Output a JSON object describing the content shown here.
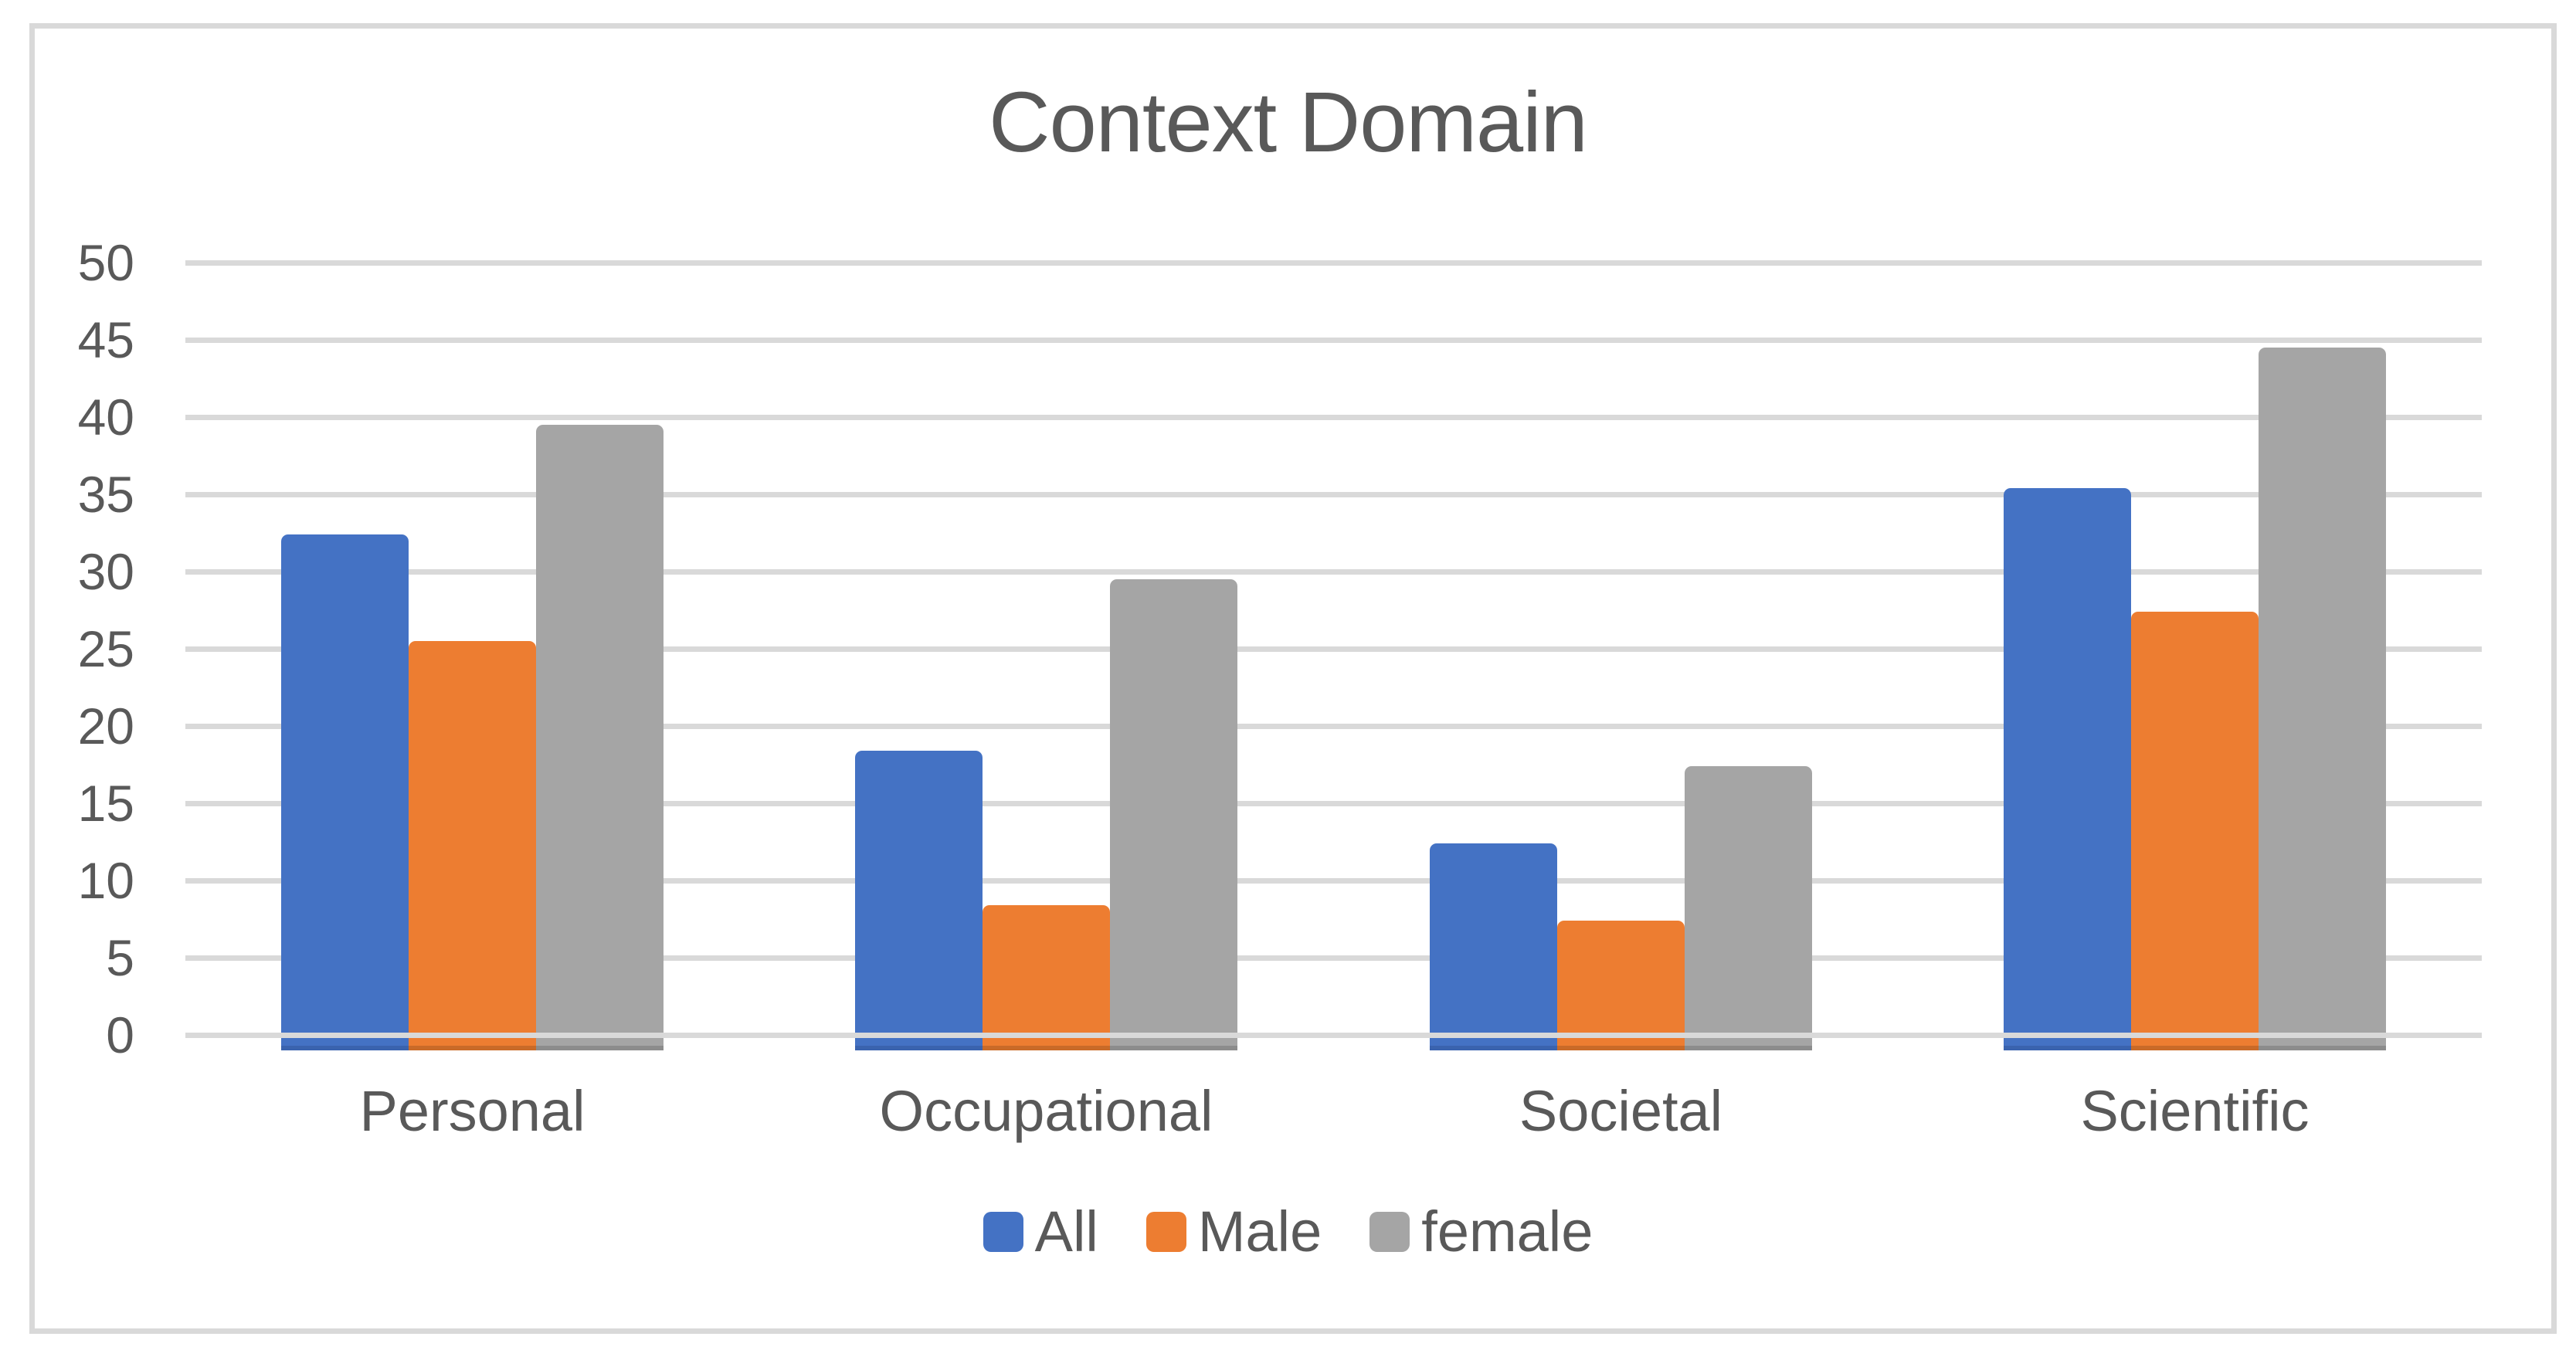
{
  "chart_data": {
    "type": "bar",
    "title": "Context Domain",
    "categories": [
      "Personal",
      "Occupational",
      "Societal",
      "Scientific"
    ],
    "series": [
      {
        "name": "All",
        "color": "#4472C4",
        "base_edge_color": "#3A63AE",
        "values": [
          32.4,
          18.4,
          12.4,
          35.4
        ]
      },
      {
        "name": "Male",
        "color": "#ED7D31",
        "base_edge_color": "#C96A28",
        "values": [
          25.5,
          8.4,
          7.4,
          27.4
        ]
      },
      {
        "name": "female",
        "color": "#A5A5A5",
        "base_edge_color": "#8C8C8C",
        "values": [
          39.5,
          29.5,
          17.4,
          44.5
        ]
      }
    ],
    "xlabel": "",
    "ylabel": "",
    "ylim": [
      0,
      50
    ],
    "y_tick_step": 5,
    "y_ticks": [
      0,
      5,
      10,
      15,
      20,
      25,
      30,
      35,
      40,
      45,
      50
    ],
    "grid": true,
    "legend_position": "bottom"
  },
  "styles": {
    "text_color": "#595959",
    "gridline_color": "#D9D9D9",
    "border_color": "#D9D9D9",
    "background": "#FFFFFF"
  }
}
